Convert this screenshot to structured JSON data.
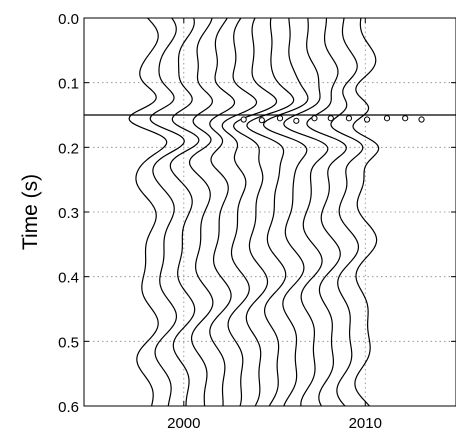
{
  "chart_data": {
    "type": "line",
    "title": "",
    "xlabel": "",
    "ylabel": "Time (s)",
    "xlim": [
      1994.5,
      2015.0
    ],
    "ylim": [
      0.0,
      0.6
    ],
    "y_inverted": true,
    "grid": true,
    "x_ticks": [
      2000,
      2010
    ],
    "x_tick_labels": [
      "2000",
      "2010"
    ],
    "y_ticks": [
      0.0,
      0.1,
      0.2,
      0.3,
      0.4,
      0.5,
      0.6
    ],
    "y_tick_labels": [
      "0.0",
      "0.1",
      "0.2",
      "0.3",
      "0.4",
      "0.5",
      "0.6"
    ],
    "reference_line": {
      "y": 0.15
    },
    "traces": [
      {
        "x": 1998.0,
        "amp": 1.1,
        "phase": 0.0,
        "t_pick": 0.157
      },
      {
        "x": 1999.0,
        "amp": 1.1,
        "phase": 0.45,
        "t_pick": 0.158
      },
      {
        "x": 2000.0,
        "amp": 1.1,
        "phase": 0.9,
        "t_pick": 0.159
      },
      {
        "x": 2001.0,
        "amp": 1.1,
        "phase": 1.35,
        "t_pick": 0.16
      },
      {
        "x": 2002.0,
        "amp": 1.1,
        "phase": 1.8,
        "t_pick": 0.161
      },
      {
        "x": 2003.0,
        "amp": 1.1,
        "phase": 2.25,
        "t_pick": 0.162
      },
      {
        "x": 2004.0,
        "amp": 1.1,
        "phase": 2.7,
        "t_pick": 0.163
      },
      {
        "x": 2005.0,
        "amp": 1.1,
        "phase": 3.15,
        "t_pick": 0.164
      },
      {
        "x": 2006.0,
        "amp": 1.1,
        "phase": 3.6,
        "t_pick": 0.165
      },
      {
        "x": 2007.0,
        "amp": 1.1,
        "phase": 4.05,
        "t_pick": 0.166
      },
      {
        "x": 2008.0,
        "amp": 1.1,
        "phase": 4.5,
        "t_pick": 0.167
      },
      {
        "x": 2009.0,
        "amp": 1.1,
        "phase": 4.95,
        "t_pick": 0.168
      },
      {
        "x": 2010.0,
        "amp": 1.1,
        "phase": 5.4,
        "t_pick": 0.169
      }
    ],
    "picks": [
      {
        "x": 2003.3,
        "y": 0.157
      },
      {
        "x": 2004.3,
        "y": 0.158
      },
      {
        "x": 2005.3,
        "y": 0.155
      },
      {
        "x": 2006.2,
        "y": 0.159
      },
      {
        "x": 2007.2,
        "y": 0.155
      },
      {
        "x": 2008.1,
        "y": 0.155
      },
      {
        "x": 2009.1,
        "y": 0.155
      },
      {
        "x": 2010.1,
        "y": 0.157
      },
      {
        "x": 2011.2,
        "y": 0.155
      },
      {
        "x": 2012.2,
        "y": 0.155
      },
      {
        "x": 2013.1,
        "y": 0.157
      }
    ],
    "colors": {
      "trace": "#000000",
      "grid": "#888888",
      "axis": "#000000"
    }
  }
}
